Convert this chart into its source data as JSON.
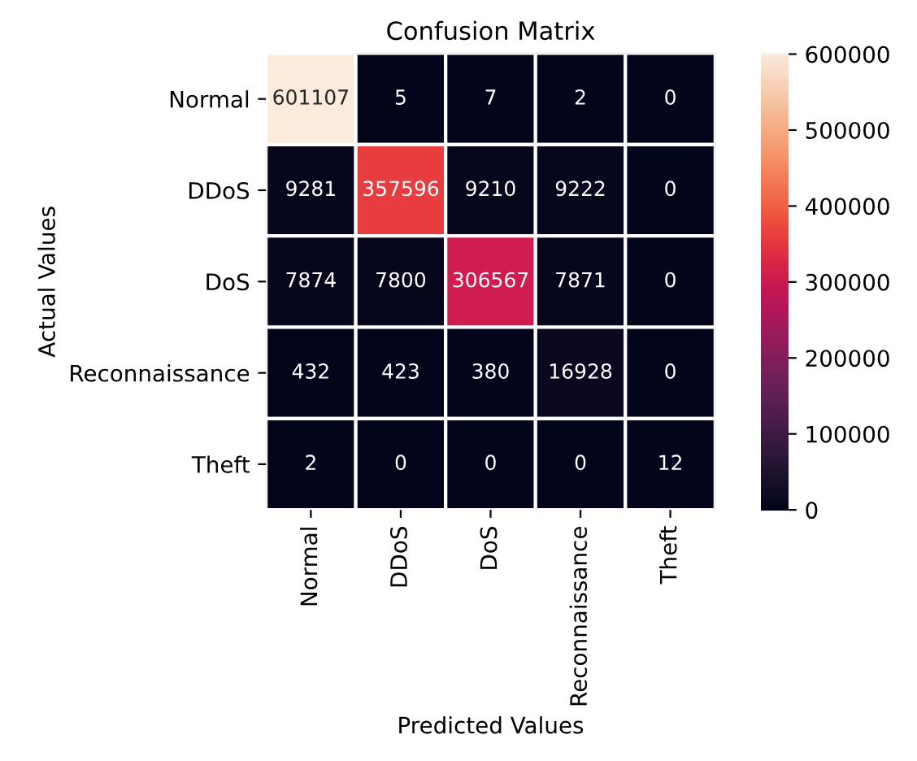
{
  "chart_data": {
    "type": "heatmap",
    "title": "Confusion Matrix",
    "xlabel": "Predicted Values",
    "ylabel": "Actual Values",
    "categories": [
      "Normal",
      "DDoS",
      "DoS",
      "Reconnaissance",
      "Theft"
    ],
    "y_categories": [
      "Normal",
      "DDoS",
      "DoS",
      "Reconnaissance",
      "Theft"
    ],
    "cells": [
      [
        601107,
        5,
        7,
        2,
        0
      ],
      [
        9281,
        357596,
        9210,
        9222,
        0
      ],
      [
        7874,
        7800,
        306567,
        7871,
        0
      ],
      [
        432,
        423,
        380,
        16928,
        0
      ],
      [
        2,
        0,
        0,
        0,
        12
      ]
    ],
    "clim": [
      0,
      601107
    ],
    "cticks": [
      0,
      100000,
      200000,
      300000,
      400000,
      500000,
      600000
    ],
    "data_labels": true
  }
}
